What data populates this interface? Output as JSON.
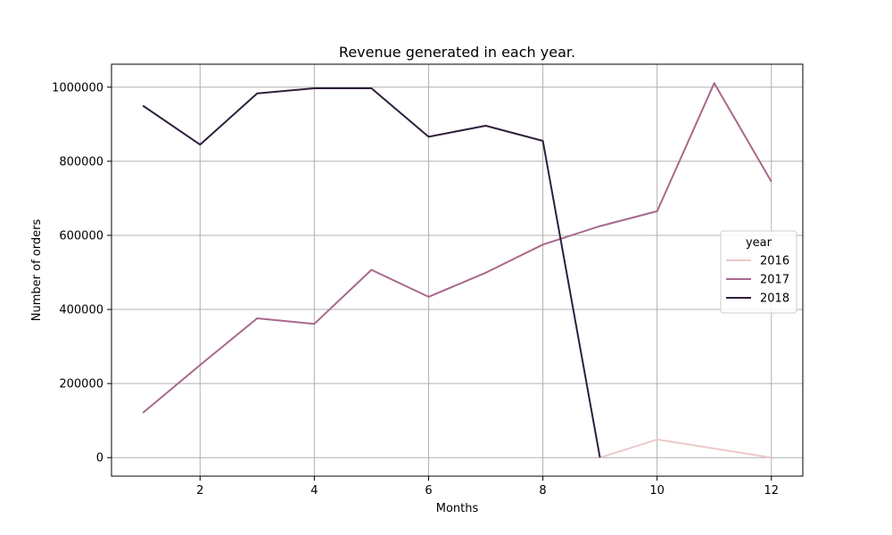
{
  "chart_data": {
    "type": "line",
    "title": "Revenue generated in each year.",
    "xlabel": "Months",
    "ylabel": "Number of orders",
    "xlim": [
      0.45,
      12.55
    ],
    "ylim": [
      -50000,
      1062000
    ],
    "xticks": [
      2,
      4,
      6,
      8,
      10,
      12
    ],
    "xtick_labels": [
      "2",
      "4",
      "6",
      "8",
      "10",
      "12"
    ],
    "yticks": [
      0,
      200000,
      400000,
      600000,
      800000,
      1000000
    ],
    "ytick_labels": [
      "0",
      "200000",
      "400000",
      "600000",
      "800000",
      "1000000"
    ],
    "grid": true,
    "legend": {
      "title": "year",
      "placement": "center-right"
    },
    "series": [
      {
        "name": "2016",
        "color": "#ebcac9",
        "x": [
          9,
          10,
          12
        ],
        "y": [
          0,
          49000,
          0
        ]
      },
      {
        "name": "2017",
        "color": "#a8688c",
        "x": [
          1,
          2,
          3,
          4,
          5,
          6,
          7,
          8,
          9,
          10,
          11,
          12
        ],
        "y": [
          121000,
          250000,
          376000,
          361000,
          507000,
          434000,
          499000,
          575000,
          625000,
          665000,
          1011000,
          745000
        ]
      },
      {
        "name": "2018",
        "color": "#2e1e3b",
        "x": [
          1,
          2,
          3,
          4,
          5,
          6,
          7,
          8,
          9
        ],
        "y": [
          950000,
          845000,
          983000,
          997000,
          997000,
          866000,
          896000,
          855000,
          0
        ]
      }
    ]
  }
}
